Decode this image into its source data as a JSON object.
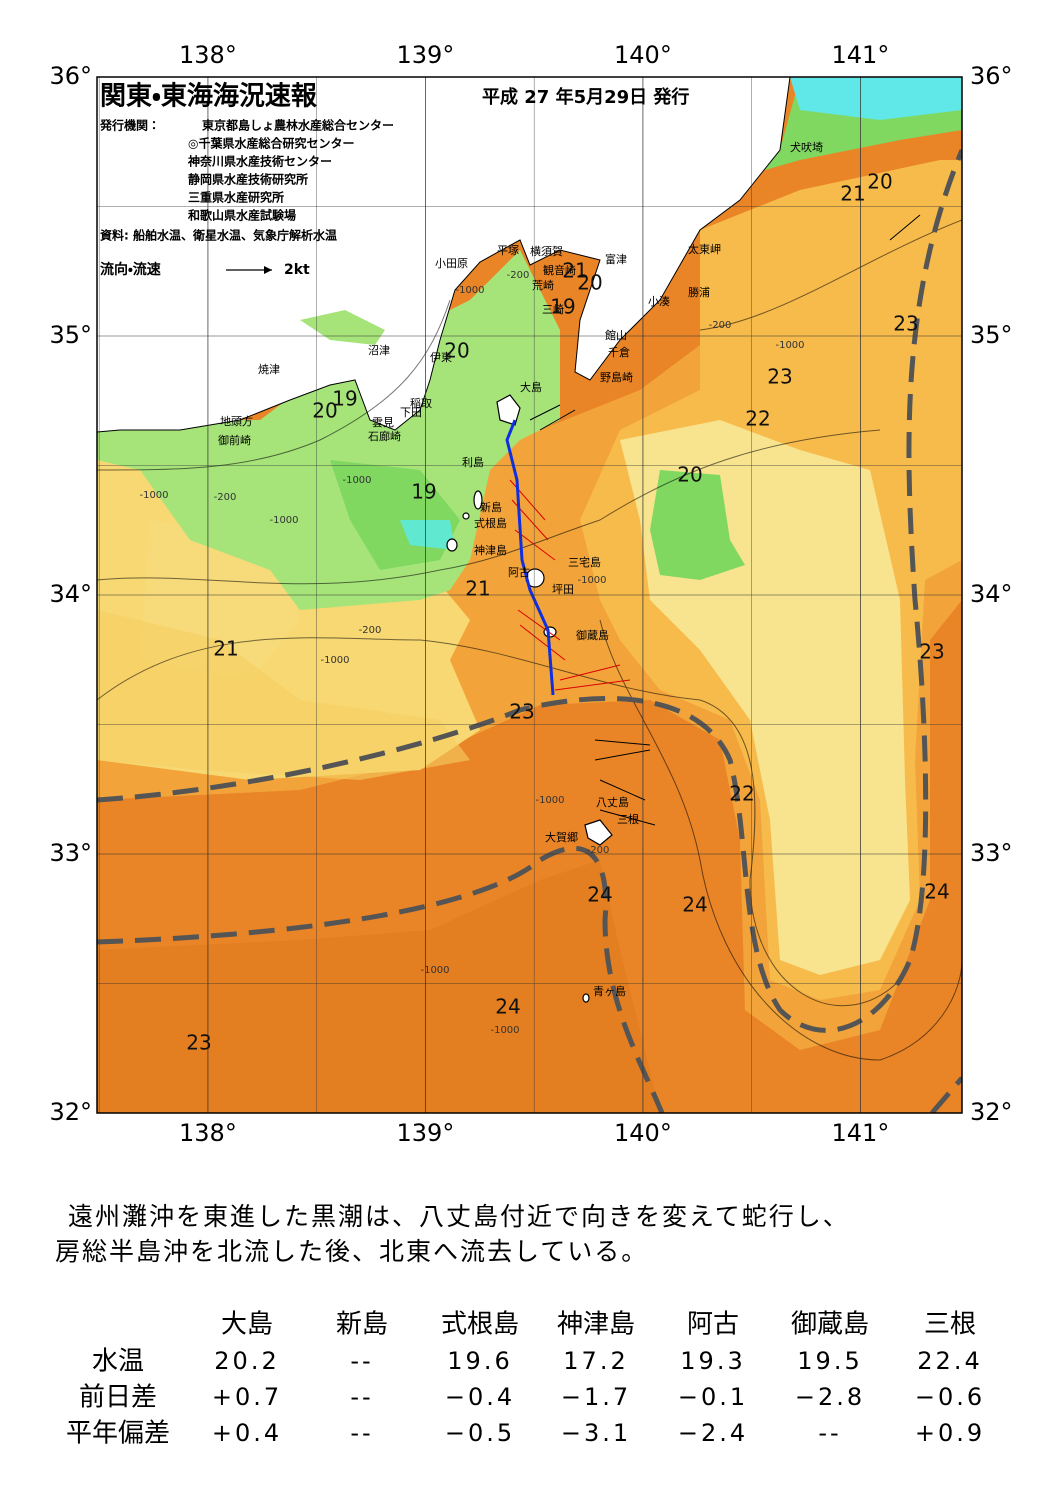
{
  "header": {
    "title": "関東・東海海況速報",
    "date": "平成 27 年5月29日 発行",
    "publisher_label": "発行機関：",
    "publishers": [
      "東京都島しょ農林水産総合センター",
      "◎千葉県水産総合研究センター",
      "神奈川県水産技術センター",
      "静岡県水産技術研究所",
      "三重県水産研究所",
      "和歌山県水産試験場"
    ],
    "source": "資料: 船舶水温、衛星水温、気象庁解析水温",
    "legend_label": "流向・流速",
    "legend_speed": "2kt"
  },
  "map": {
    "lon_ticks": [
      {
        "value": 138,
        "label": "138°"
      },
      {
        "value": 139,
        "label": "139°"
      },
      {
        "value": 140,
        "label": "140°"
      },
      {
        "value": 141,
        "label": "141°"
      }
    ],
    "lat_ticks": [
      {
        "value": 36,
        "label": "36°"
      },
      {
        "value": 35,
        "label": "35°"
      },
      {
        "value": 34,
        "label": "34°"
      },
      {
        "value": 33,
        "label": "33°"
      },
      {
        "value": 32,
        "label": "32°"
      }
    ],
    "place_names": [
      "犬吠埼",
      "太東岬",
      "勝浦",
      "小湊",
      "富津",
      "横須賀",
      "観音崎",
      "荒崎",
      "三崎",
      "館山",
      "千倉",
      "野島崎",
      "平塚",
      "小田原",
      "沼津",
      "伊東",
      "焼津",
      "稲取",
      "下田",
      "雲見",
      "石廊崎",
      "地頭方",
      "御前崎",
      "大島",
      "利島",
      "新島",
      "式根島",
      "神津島",
      "三宅島",
      "阿古",
      "坪田",
      "御蔵島",
      "八丈島",
      "三根",
      "大賀郷",
      "青ヶ島"
    ],
    "isotherm_labels": [
      21,
      20,
      19,
      20,
      19,
      20,
      19,
      20,
      21,
      21,
      23,
      22,
      24,
      24,
      24,
      23,
      23,
      23,
      23,
      22,
      21,
      20,
      24
    ],
    "depth_labels": [
      -200,
      -1000,
      -1000,
      -200,
      -1000,
      -1000,
      -200,
      -1000,
      -1000,
      -200,
      -1000,
      -1000,
      -200,
      -1000,
      -1000
    ]
  },
  "summary": [
    "遠州灘沖を東進した黒潮は、八丈島付近で向きを変えて蛇行し、",
    "房総半島沖を北流した後、北東へ流去している。"
  ],
  "table": {
    "columns": [
      "大島",
      "新島",
      "式根島",
      "神津島",
      "阿古",
      "御蔵島",
      "三根"
    ],
    "rows": [
      {
        "label": "水温",
        "cells": [
          "20.2",
          "--",
          "19.6",
          "17.2",
          "19.3",
          "19.5",
          "22.4"
        ]
      },
      {
        "label": "前日差",
        "cells": [
          "+0.7",
          "--",
          "−0.4",
          "−1.7",
          "−0.1",
          "−2.8",
          "−0.6"
        ]
      },
      {
        "label": "平年偏差",
        "cells": [
          "+0.4",
          "--",
          "−0.5",
          "−3.1",
          "−2.4",
          "--",
          "+0.9"
        ]
      }
    ]
  }
}
